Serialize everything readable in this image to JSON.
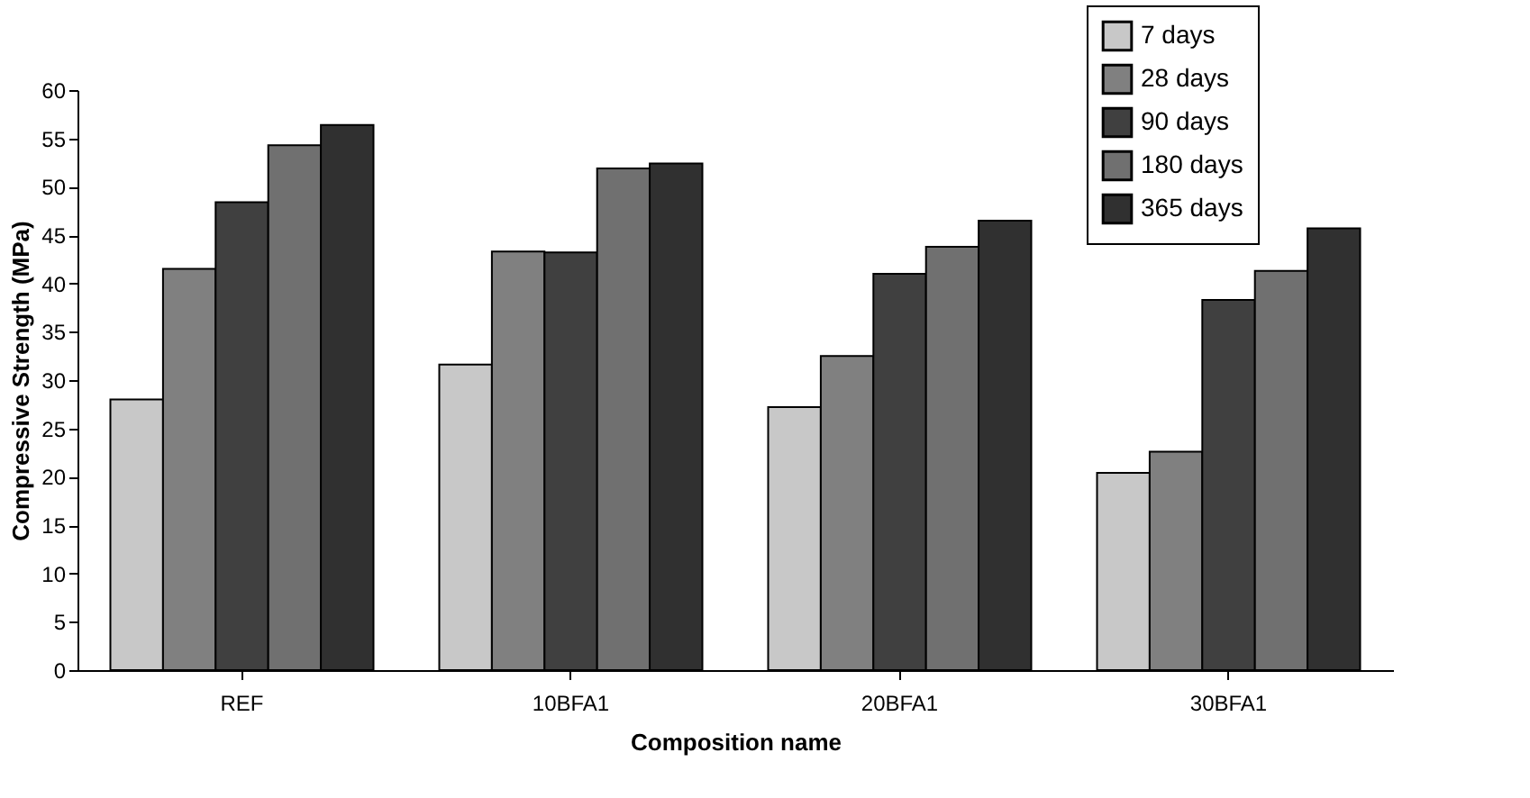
{
  "chart_data": {
    "type": "bar",
    "xlabel": "Composition name",
    "ylabel": "Compressive Strength (MPa)",
    "categories": [
      "REF",
      "10BFA1",
      "20BFA1",
      "30BFA1"
    ],
    "series": [
      {
        "name": "7 days",
        "color": "#c8c8c8",
        "values": [
          28.0,
          31.6,
          27.2,
          20.4
        ]
      },
      {
        "name": "28 days",
        "color": "#808080",
        "values": [
          41.5,
          43.3,
          32.5,
          22.6
        ]
      },
      {
        "name": "90 days",
        "color": "#404040",
        "values": [
          48.4,
          43.2,
          41.0,
          38.3
        ]
      },
      {
        "name": "180 days",
        "color": "#707070",
        "values": [
          54.3,
          51.9,
          43.8,
          41.3
        ]
      },
      {
        "name": "365 days",
        "color": "#303030",
        "values": [
          56.4,
          52.4,
          46.5,
          45.7
        ]
      }
    ],
    "ylim": [
      0,
      60
    ],
    "yticks": [
      0,
      5,
      10,
      15,
      20,
      25,
      30,
      35,
      40,
      45,
      50,
      55,
      60
    ],
    "grid": false,
    "legend": "top right"
  }
}
